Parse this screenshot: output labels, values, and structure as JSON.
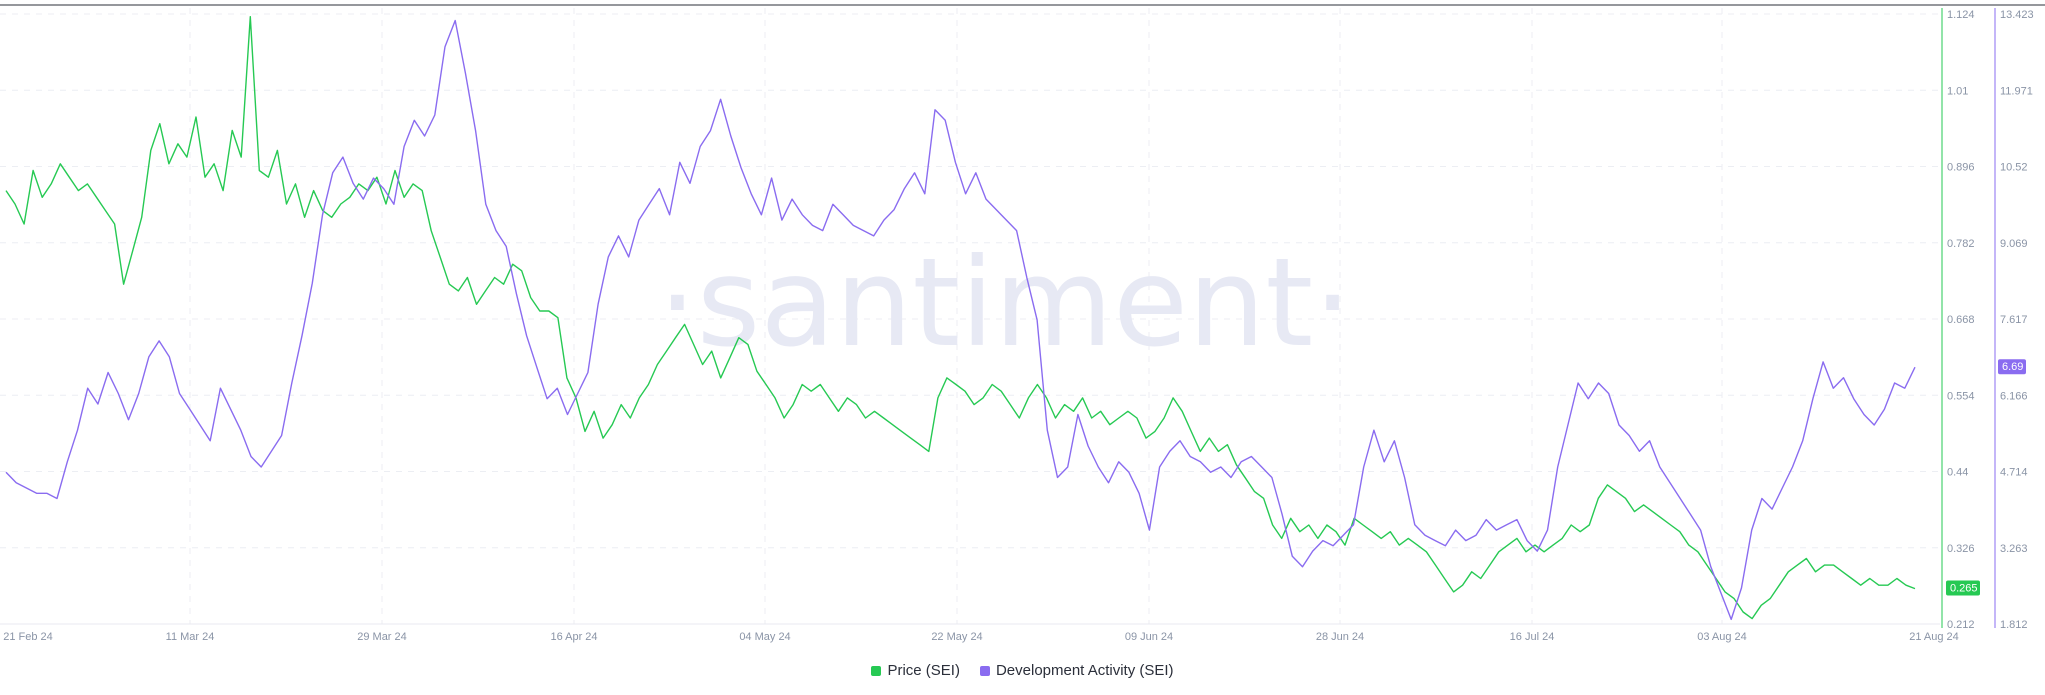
{
  "chart_data": {
    "type": "line",
    "watermark": "·santiment·",
    "x_ticks": [
      "21 Feb 24",
      "11 Mar 24",
      "29 Mar 24",
      "16 Apr 24",
      "04 May 24",
      "22 May 24",
      "09 Jun 24",
      "28 Jun 24",
      "16 Jul 24",
      "03 Aug 24",
      "21 Aug 24"
    ],
    "y_right_price": {
      "ticks": [
        "1.124",
        "1.01",
        "0.896",
        "0.782",
        "0.668",
        "0.554",
        "0.44",
        "0.326",
        "0.212"
      ],
      "range": [
        0.212,
        1.124
      ],
      "color": "#26c953"
    },
    "y_right_dev": {
      "ticks": [
        "13.423",
        "11.971",
        "10.52",
        "9.069",
        "7.617",
        "6.166",
        "4.714",
        "3.263",
        "1.812"
      ],
      "range": [
        1.812,
        13.423
      ],
      "color": "#8a6cf0"
    },
    "grid": true,
    "legend_position": "bottom-center",
    "series": [
      {
        "name": "Price (SEI)",
        "color": "#26c953",
        "current_value": "0.265",
        "values": [
          0.86,
          0.84,
          0.81,
          0.89,
          0.85,
          0.87,
          0.9,
          0.88,
          0.86,
          0.87,
          0.85,
          0.83,
          0.81,
          0.72,
          0.77,
          0.82,
          0.92,
          0.96,
          0.9,
          0.93,
          0.91,
          0.97,
          0.88,
          0.9,
          0.86,
          0.95,
          0.91,
          1.12,
          0.89,
          0.88,
          0.92,
          0.84,
          0.87,
          0.82,
          0.86,
          0.83,
          0.82,
          0.84,
          0.85,
          0.87,
          0.86,
          0.88,
          0.84,
          0.89,
          0.85,
          0.87,
          0.86,
          0.8,
          0.76,
          0.72,
          0.71,
          0.73,
          0.69,
          0.71,
          0.73,
          0.72,
          0.75,
          0.74,
          0.7,
          0.68,
          0.68,
          0.67,
          0.58,
          0.55,
          0.5,
          0.53,
          0.49,
          0.51,
          0.54,
          0.52,
          0.55,
          0.57,
          0.6,
          0.62,
          0.64,
          0.66,
          0.63,
          0.6,
          0.62,
          0.58,
          0.61,
          0.64,
          0.63,
          0.59,
          0.57,
          0.55,
          0.52,
          0.54,
          0.57,
          0.56,
          0.57,
          0.55,
          0.53,
          0.55,
          0.54,
          0.52,
          0.53,
          0.52,
          0.51,
          0.5,
          0.49,
          0.48,
          0.47,
          0.55,
          0.58,
          0.57,
          0.56,
          0.54,
          0.55,
          0.57,
          0.56,
          0.54,
          0.52,
          0.55,
          0.57,
          0.55,
          0.52,
          0.54,
          0.53,
          0.55,
          0.52,
          0.53,
          0.51,
          0.52,
          0.53,
          0.52,
          0.49,
          0.5,
          0.52,
          0.55,
          0.53,
          0.5,
          0.47,
          0.49,
          0.47,
          0.48,
          0.45,
          0.43,
          0.41,
          0.4,
          0.36,
          0.34,
          0.37,
          0.35,
          0.36,
          0.34,
          0.36,
          0.35,
          0.33,
          0.37,
          0.36,
          0.35,
          0.34,
          0.35,
          0.33,
          0.34,
          0.33,
          0.32,
          0.3,
          0.28,
          0.26,
          0.27,
          0.29,
          0.28,
          0.3,
          0.32,
          0.33,
          0.34,
          0.32,
          0.33,
          0.32,
          0.33,
          0.34,
          0.36,
          0.35,
          0.36,
          0.4,
          0.42,
          0.41,
          0.4,
          0.38,
          0.39,
          0.38,
          0.37,
          0.36,
          0.35,
          0.33,
          0.32,
          0.3,
          0.28,
          0.26,
          0.25,
          0.23,
          0.22,
          0.24,
          0.25,
          0.27,
          0.29,
          0.3,
          0.31,
          0.29,
          0.3,
          0.3,
          0.29,
          0.28,
          0.27,
          0.28,
          0.27,
          0.27,
          0.28,
          0.27,
          0.265
        ]
      },
      {
        "name": "Development Activity (SEI)",
        "color": "#8a6cf0",
        "current_value": "6.69",
        "values": [
          4.7,
          4.5,
          4.4,
          4.3,
          4.3,
          4.2,
          4.9,
          5.5,
          6.3,
          6.0,
          6.6,
          6.2,
          5.7,
          6.2,
          6.9,
          7.2,
          6.9,
          6.2,
          5.9,
          5.6,
          5.3,
          6.3,
          5.9,
          5.5,
          5.0,
          4.8,
          5.1,
          5.4,
          6.4,
          7.3,
          8.3,
          9.6,
          10.4,
          10.7,
          10.2,
          9.9,
          10.3,
          10.1,
          9.8,
          10.9,
          11.4,
          11.1,
          11.5,
          12.8,
          13.3,
          12.3,
          11.2,
          9.8,
          9.3,
          9.0,
          8.1,
          7.3,
          6.7,
          6.1,
          6.3,
          5.8,
          6.2,
          6.6,
          7.9,
          8.8,
          9.2,
          8.8,
          9.5,
          9.8,
          10.1,
          9.6,
          10.6,
          10.2,
          10.9,
          11.2,
          11.8,
          11.1,
          10.5,
          10.0,
          9.6,
          10.3,
          9.5,
          9.9,
          9.6,
          9.4,
          9.3,
          9.8,
          9.6,
          9.4,
          9.3,
          9.2,
          9.5,
          9.7,
          10.1,
          10.4,
          10.0,
          11.6,
          11.4,
          10.6,
          10.0,
          10.4,
          9.9,
          9.7,
          9.5,
          9.3,
          8.4,
          7.6,
          5.5,
          4.6,
          4.8,
          5.8,
          5.2,
          4.8,
          4.5,
          4.9,
          4.7,
          4.3,
          3.6,
          4.8,
          5.1,
          5.3,
          5.0,
          4.9,
          4.7,
          4.8,
          4.6,
          4.9,
          5.0,
          4.8,
          4.6,
          3.9,
          3.1,
          2.9,
          3.2,
          3.4,
          3.3,
          3.5,
          3.7,
          4.8,
          5.5,
          4.9,
          5.3,
          4.6,
          3.7,
          3.5,
          3.4,
          3.3,
          3.6,
          3.4,
          3.5,
          3.8,
          3.6,
          3.7,
          3.8,
          3.4,
          3.2,
          3.6,
          4.8,
          5.6,
          6.4,
          6.1,
          6.4,
          6.2,
          5.6,
          5.4,
          5.1,
          5.3,
          4.8,
          4.5,
          4.2,
          3.9,
          3.6,
          2.9,
          2.4,
          1.9,
          2.5,
          3.6,
          4.2,
          4.0,
          4.4,
          4.8,
          5.3,
          6.1,
          6.8,
          6.3,
          6.5,
          6.1,
          5.8,
          5.6,
          5.9,
          6.4,
          6.3,
          6.7
        ]
      }
    ]
  },
  "legend": {
    "price_label": "Price (SEI)",
    "dev_label": "Development Activity (SEI)"
  }
}
